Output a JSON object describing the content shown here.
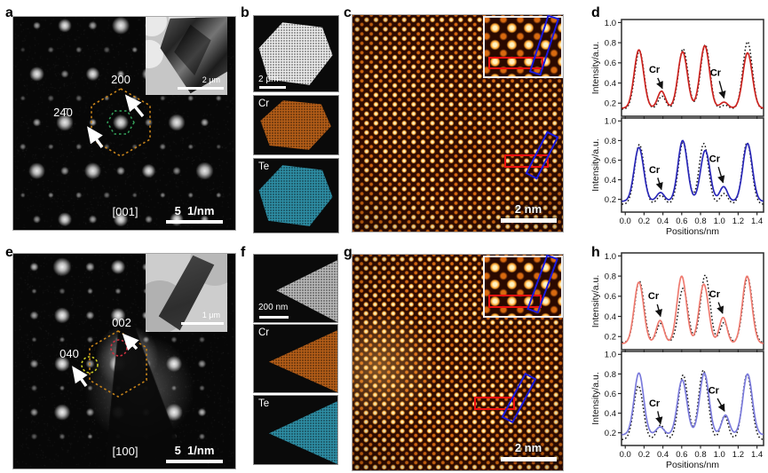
{
  "panels": {
    "a": {
      "label": "a",
      "spot1": "200",
      "spot2": "24̄0",
      "zone_axis": "[001]",
      "scale_bar": "5  1/nm",
      "inset_scale": "2 μm"
    },
    "b": {
      "label": "b",
      "scale_bar": "2 μm",
      "map1_label": "Cr",
      "map2_label": "Te"
    },
    "c": {
      "label": "c",
      "scale_bar": "2 nm"
    },
    "d": {
      "label": "d"
    },
    "e": {
      "label": "e",
      "spot1": "002",
      "spot2": "040",
      "zone_axis": "[100]",
      "scale_bar": "5  1/nm",
      "inset_scale": "1 μm"
    },
    "f": {
      "label": "f",
      "scale_bar": "200 nm",
      "map1_label": "Cr",
      "map2_label": "Te"
    },
    "g": {
      "label": "g",
      "scale_bar": "2 nm"
    },
    "h": {
      "label": "h"
    }
  },
  "colors": {
    "cr_map": "#b55e18",
    "te_map": "#2e8fa6",
    "haadf_flake": "#ececec",
    "tem_triangle": "#b9b9b9",
    "saed_hex_outer": "#c8841a",
    "saed_hex_inner": "#34a05a",
    "circle_red": "#d03040",
    "circle_yellow": "#cccc22",
    "box_red": "#ee1111",
    "box_blue": "#1a1ae0",
    "curve_red": "#cc2420",
    "curve_blue": "#2a28b8",
    "curve_pink": "#ef7b70",
    "curve_lightblue": "#7b7bdc",
    "fit_dotted": "#151515"
  },
  "chart_data": [
    {
      "type": "line",
      "panel": "d",
      "position": "top",
      "ylabel": "Intensity/a.u.",
      "xlabel": "Positions/nm",
      "show_x_labels": false,
      "xlim": [
        -0.04,
        1.47
      ],
      "ylim": [
        0.07,
        1.03
      ],
      "x_ticks": [
        0.0,
        0.2,
        0.4,
        0.6,
        0.8,
        1.0,
        1.2,
        1.4
      ],
      "y_ticks": [
        0.2,
        0.4,
        0.6,
        0.8,
        1.0
      ],
      "series": [
        {
          "name": "fit",
          "style": "dotted",
          "color": "#151515",
          "base": 0.14,
          "peaks": [
            [
              0.15,
              0.72
            ],
            [
              0.39,
              0.27
            ],
            [
              0.615,
              0.74
            ],
            [
              0.85,
              0.78
            ],
            [
              1.06,
              0.18
            ],
            [
              1.3,
              0.81
            ]
          ]
        },
        {
          "name": "experiment",
          "style": "solid",
          "color": "#cc2420",
          "base": 0.15,
          "peaks": [
            [
              0.145,
              0.73
            ],
            [
              0.385,
              0.32
            ],
            [
              0.61,
              0.71
            ],
            [
              0.845,
              0.77
            ],
            [
              1.05,
              0.21
            ],
            [
              1.3,
              0.7
            ]
          ]
        }
      ],
      "annotations": [
        {
          "text": "Cr",
          "tx": 0.31,
          "ty": 0.5,
          "sx": 0.345,
          "sy": 0.45,
          "ex": 0.395,
          "ey": 0.345
        },
        {
          "text": "Cr",
          "tx": 0.96,
          "ty": 0.47,
          "sx": 1.0,
          "sy": 0.42,
          "ex": 1.05,
          "ey": 0.25
        }
      ]
    },
    {
      "type": "line",
      "panel": "d",
      "position": "bottom",
      "ylabel": "Intensity/a.u.",
      "xlabel": "Positions/nm",
      "show_x_labels": true,
      "xlim": [
        -0.04,
        1.47
      ],
      "ylim": [
        0.07,
        1.03
      ],
      "x_ticks": [
        0.0,
        0.2,
        0.4,
        0.6,
        0.8,
        1.0,
        1.2,
        1.4
      ],
      "y_ticks": [
        0.2,
        0.4,
        0.6,
        0.8,
        1.0
      ],
      "series": [
        {
          "name": "fit",
          "style": "dotted",
          "color": "#151515",
          "base": 0.15,
          "peaks": [
            [
              0.15,
              0.76
            ],
            [
              0.38,
              0.24
            ],
            [
              0.615,
              0.79
            ],
            [
              0.835,
              0.77
            ],
            [
              1.05,
              0.26
            ],
            [
              1.295,
              0.78
            ]
          ]
        },
        {
          "name": "experiment",
          "style": "solid",
          "color": "#2a28b8",
          "base": 0.18,
          "peaks": [
            [
              0.145,
              0.73
            ],
            [
              0.375,
              0.27
            ],
            [
              0.61,
              0.8
            ],
            [
              0.85,
              0.7
            ],
            [
              1.045,
              0.33
            ],
            [
              1.3,
              0.77
            ]
          ]
        }
      ],
      "annotations": [
        {
          "text": "Cr",
          "tx": 0.31,
          "ty": 0.47,
          "sx": 0.345,
          "sy": 0.42,
          "ex": 0.385,
          "ey": 0.3
        },
        {
          "text": "Cr",
          "tx": 0.95,
          "ty": 0.58,
          "sx": 0.99,
          "sy": 0.53,
          "ex": 1.04,
          "ey": 0.37
        }
      ]
    },
    {
      "type": "line",
      "panel": "h",
      "position": "top",
      "ylabel": "Intensity/a.u.",
      "xlabel": "Positions/nm",
      "show_x_labels": false,
      "xlim": [
        -0.04,
        1.47
      ],
      "ylim": [
        0.07,
        1.03
      ],
      "x_ticks": [
        0.0,
        0.2,
        0.4,
        0.6,
        0.8,
        1.0,
        1.2,
        1.4
      ],
      "y_ticks": [
        0.2,
        0.4,
        0.6,
        0.8,
        1.0
      ],
      "series": [
        {
          "name": "fit",
          "style": "dotted",
          "color": "#151515",
          "base": 0.14,
          "peaks": [
            [
              0.15,
              0.75
            ],
            [
              0.375,
              0.33
            ],
            [
              0.615,
              0.68
            ],
            [
              0.85,
              0.81
            ],
            [
              1.05,
              0.34
            ],
            [
              1.3,
              0.79
            ]
          ]
        },
        {
          "name": "experiment",
          "style": "solid",
          "color": "#ef7b70",
          "base": 0.13,
          "peaks": [
            [
              0.145,
              0.74
            ],
            [
              0.37,
              0.36
            ],
            [
              0.6,
              0.8
            ],
            [
              0.835,
              0.72
            ],
            [
              1.04,
              0.39
            ],
            [
              1.295,
              0.8
            ]
          ]
        }
      ],
      "annotations": [
        {
          "text": "Cr",
          "tx": 0.3,
          "ty": 0.57,
          "sx": 0.34,
          "sy": 0.52,
          "ex": 0.375,
          "ey": 0.4
        },
        {
          "text": "Cr",
          "tx": 0.95,
          "ty": 0.59,
          "sx": 0.99,
          "sy": 0.54,
          "ex": 1.035,
          "ey": 0.43
        }
      ]
    },
    {
      "type": "line",
      "panel": "h",
      "position": "bottom",
      "ylabel": "Intensity/a.u.",
      "xlabel": "Positions/nm",
      "show_x_labels": true,
      "xlim": [
        -0.04,
        1.47
      ],
      "ylim": [
        0.07,
        1.03
      ],
      "x_ticks": [
        0.0,
        0.2,
        0.4,
        0.6,
        0.8,
        1.0,
        1.2,
        1.4
      ],
      "y_ticks": [
        0.2,
        0.4,
        0.6,
        0.8,
        1.0
      ],
      "series": [
        {
          "name": "fit",
          "style": "dotted",
          "color": "#151515",
          "base": 0.13,
          "peaks": [
            [
              0.14,
              0.68
            ],
            [
              0.375,
              0.28
            ],
            [
              0.615,
              0.79
            ],
            [
              0.83,
              0.84
            ],
            [
              1.055,
              0.37
            ],
            [
              1.295,
              0.8
            ]
          ]
        },
        {
          "name": "experiment",
          "style": "solid",
          "color": "#7b7bdc",
          "base": 0.18,
          "peaks": [
            [
              0.145,
              0.81
            ],
            [
              0.37,
              0.26
            ],
            [
              0.605,
              0.74
            ],
            [
              0.84,
              0.81
            ],
            [
              1.065,
              0.38
            ],
            [
              1.3,
              0.8
            ]
          ]
        }
      ],
      "annotations": [
        {
          "text": "Cr",
          "tx": 0.31,
          "ty": 0.47,
          "sx": 0.345,
          "sy": 0.42,
          "ex": 0.375,
          "ey": 0.29
        },
        {
          "text": "Cr",
          "tx": 0.94,
          "ty": 0.6,
          "sx": 0.98,
          "sy": 0.55,
          "ex": 1.055,
          "ey": 0.42
        }
      ]
    }
  ]
}
